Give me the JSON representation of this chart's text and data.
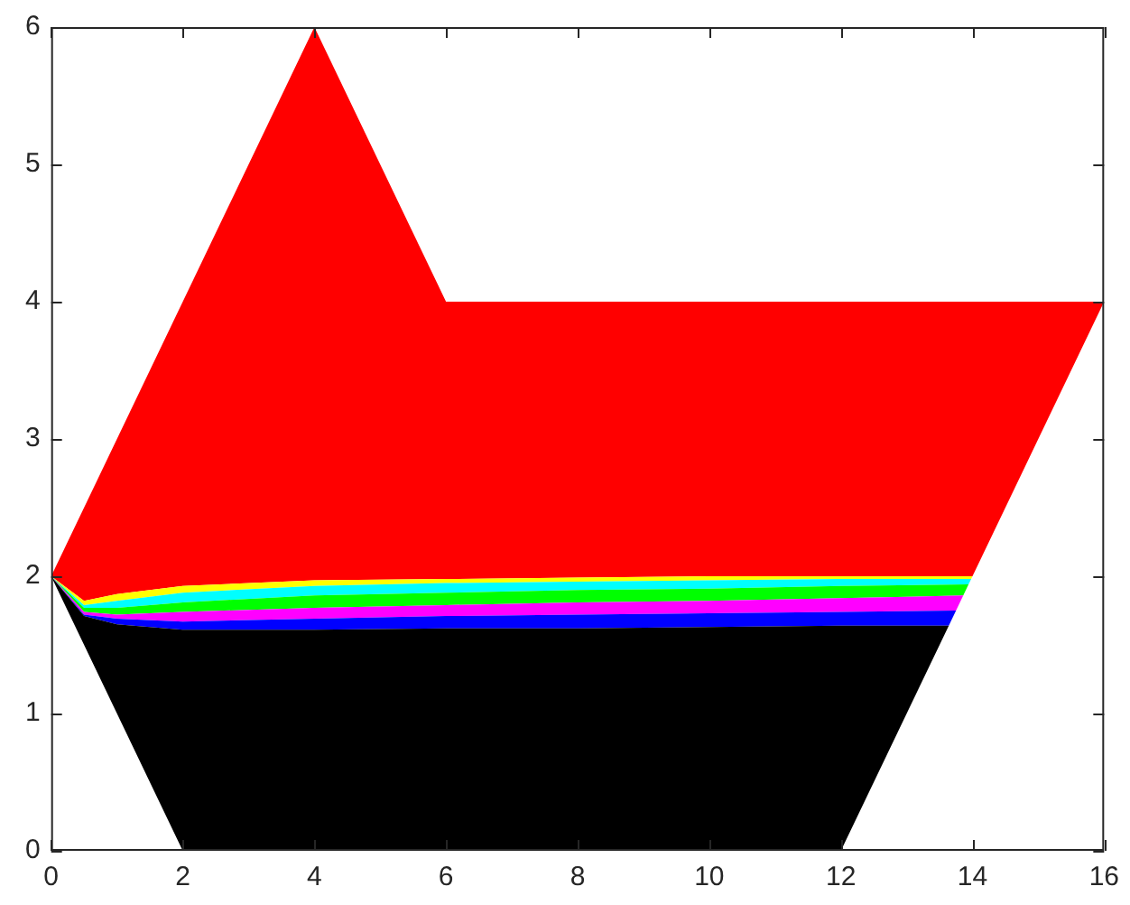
{
  "chart_data": {
    "type": "area",
    "xlim": [
      0,
      16
    ],
    "ylim": [
      0,
      6
    ],
    "xticks": [
      0,
      2,
      4,
      6,
      8,
      10,
      12,
      14,
      16
    ],
    "yticks": [
      0,
      1,
      2,
      3,
      4,
      5,
      6
    ],
    "grid": false,
    "legend": false,
    "series": [
      {
        "color": "#000000",
        "x": [
          0,
          0.5,
          1,
          2,
          4,
          6,
          8,
          10,
          12,
          13.64,
          12,
          2
        ],
        "values": [
          2,
          1.71,
          1.65,
          1.61,
          1.61,
          1.62,
          1.62,
          1.63,
          1.64,
          1.64,
          0,
          0
        ]
      },
      {
        "color": "#0000ff",
        "x": [
          0,
          0.5,
          1,
          2,
          4,
          6,
          8,
          10,
          12,
          13.75,
          13.64,
          12,
          10,
          8,
          6,
          4,
          2,
          1,
          0.5
        ],
        "values": [
          2,
          1.72,
          1.69,
          1.67,
          1.69,
          1.71,
          1.72,
          1.73,
          1.74,
          1.75,
          1.64,
          1.64,
          1.63,
          1.62,
          1.62,
          1.61,
          1.61,
          1.65,
          1.71
        ]
      },
      {
        "color": "#ff00ff",
        "x": [
          0,
          0.5,
          1,
          2,
          4,
          6,
          8,
          10,
          12,
          13.86,
          13.75,
          12,
          10,
          8,
          6,
          4,
          2,
          1,
          0.5
        ],
        "values": [
          2,
          1.74,
          1.72,
          1.74,
          1.77,
          1.79,
          1.81,
          1.82,
          1.84,
          1.86,
          1.75,
          1.74,
          1.73,
          1.72,
          1.71,
          1.69,
          1.67,
          1.69,
          1.72
        ]
      },
      {
        "color": "#00ff00",
        "x": [
          0,
          0.5,
          1,
          2,
          4,
          6,
          8,
          10,
          12,
          13.94,
          13.86,
          12,
          10,
          8,
          6,
          4,
          2,
          1,
          0.5
        ],
        "values": [
          2,
          1.77,
          1.77,
          1.81,
          1.86,
          1.88,
          1.9,
          1.91,
          1.93,
          1.94,
          1.86,
          1.84,
          1.82,
          1.81,
          1.79,
          1.77,
          1.74,
          1.72,
          1.74
        ]
      },
      {
        "color": "#00ffff",
        "x": [
          0,
          0.5,
          1,
          2,
          4,
          6,
          8,
          10,
          12,
          13.98,
          13.94,
          12,
          10,
          8,
          6,
          4,
          2,
          1,
          0.5
        ],
        "values": [
          2,
          1.79,
          1.82,
          1.88,
          1.93,
          1.95,
          1.96,
          1.97,
          1.98,
          1.98,
          1.94,
          1.93,
          1.91,
          1.9,
          1.88,
          1.86,
          1.81,
          1.77,
          1.77
        ]
      },
      {
        "color": "#ffff00",
        "x": [
          0,
          0.5,
          1,
          2,
          4,
          6,
          8,
          10,
          12,
          14,
          13.98,
          12,
          10,
          8,
          6,
          4,
          2,
          1,
          0.5
        ],
        "values": [
          2,
          1.82,
          1.87,
          1.93,
          1.97,
          1.98,
          1.99,
          2,
          2,
          2,
          1.98,
          1.98,
          1.97,
          1.96,
          1.95,
          1.93,
          1.88,
          1.82,
          1.79
        ]
      },
      {
        "color": "#ff0000",
        "x": [
          0,
          4,
          6,
          16,
          14,
          12,
          10,
          8,
          6,
          4,
          2,
          1,
          0.5
        ],
        "values": [
          2,
          6,
          4,
          4,
          2,
          2,
          2,
          1.99,
          1.98,
          1.97,
          1.93,
          1.87,
          1.82
        ]
      }
    ]
  }
}
